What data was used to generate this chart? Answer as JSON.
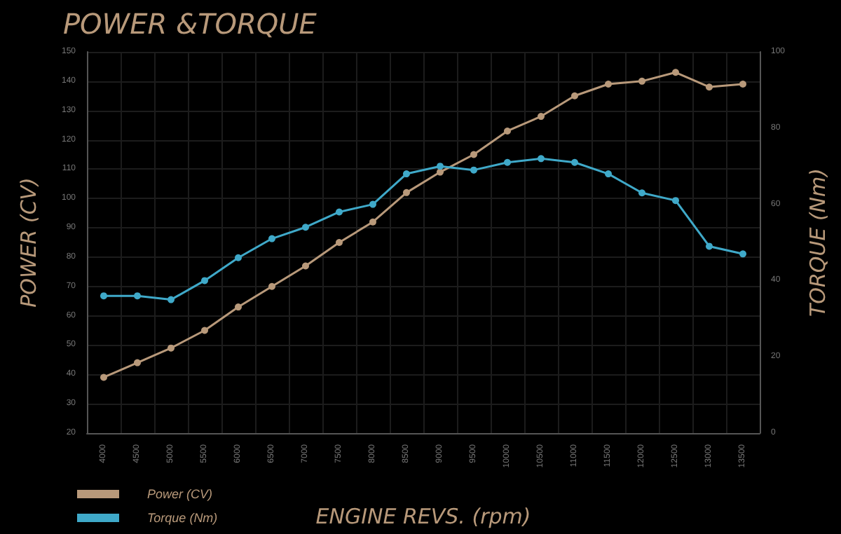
{
  "chart_data": {
    "type": "line",
    "title": "POWER &TORQUE",
    "xlabel": "ENGINE REVS. (rpm)",
    "ylabel": "POWER (CV)",
    "y2label": "TORQUE (Nm)",
    "categories": [
      "4000",
      "4500",
      "5000",
      "5500",
      "6000",
      "6500",
      "7000",
      "7500",
      "8000",
      "8500",
      "9000",
      "9500",
      "10000",
      "10500",
      "11000",
      "11500",
      "12000",
      "12500",
      "13000",
      "13500"
    ],
    "series": [
      {
        "name": "Power (CV)",
        "color": "#b8997a",
        "values": [
          39,
          44,
          49,
          55,
          63,
          70,
          77,
          85,
          92,
          102,
          109,
          115,
          123,
          128,
          135,
          139,
          140,
          143,
          138,
          139
        ]
      },
      {
        "name": "Torque (Nm)",
        "color": "#3fa9c9",
        "axis": "y2",
        "values": [
          36,
          36,
          35,
          40,
          46,
          51,
          54,
          58,
          60,
          68,
          70,
          69,
          71,
          72,
          71,
          68,
          63,
          61,
          49,
          47
        ]
      }
    ],
    "ylim": [
      20,
      150
    ],
    "yticks": [
      20,
      30,
      40,
      50,
      60,
      70,
      80,
      90,
      100,
      110,
      120,
      130,
      140,
      150
    ],
    "y2lim": [
      0,
      100
    ],
    "y2ticks": [
      0,
      20,
      40,
      60,
      80,
      100
    ],
    "grid": true,
    "legend": "bottom left",
    "marker": "circle",
    "line_style": "solid"
  }
}
